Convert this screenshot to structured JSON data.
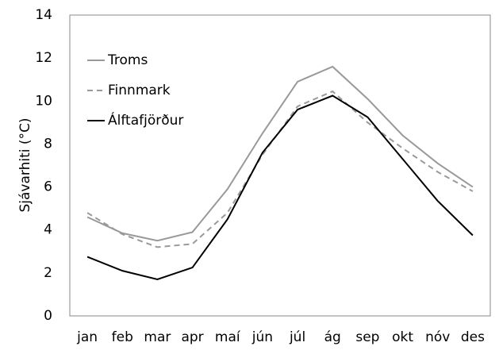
{
  "chart_data": {
    "type": "line",
    "ylabel": "Sjávarhiti (°C)",
    "categories": [
      "jan",
      "feb",
      "mar",
      "apr",
      "maí",
      "jún",
      "júl",
      "ág",
      "sep",
      "okt",
      "nóv",
      "des"
    ],
    "series": [
      {
        "name": "Troms",
        "color": "#999999",
        "style": "solid",
        "values": [
          4.6,
          3.85,
          3.5,
          3.9,
          5.9,
          8.5,
          10.9,
          11.6,
          10.1,
          8.4,
          7.1,
          6.0
        ]
      },
      {
        "name": "Finnmark",
        "color": "#999999",
        "style": "dashed",
        "values": [
          4.8,
          3.8,
          3.2,
          3.35,
          4.8,
          7.5,
          9.75,
          10.45,
          9.0,
          7.8,
          6.7,
          5.8
        ]
      },
      {
        "name": "Álftafjörður",
        "color": "#000000",
        "style": "solid",
        "values": [
          2.75,
          2.1,
          1.7,
          2.25,
          4.5,
          7.6,
          9.6,
          10.25,
          9.25,
          7.3,
          5.35,
          3.75
        ]
      }
    ],
    "ylim": [
      0,
      14
    ],
    "yticks": [
      0,
      2,
      4,
      6,
      8,
      10,
      12,
      14
    ],
    "grid": false,
    "legend": "top-left"
  }
}
